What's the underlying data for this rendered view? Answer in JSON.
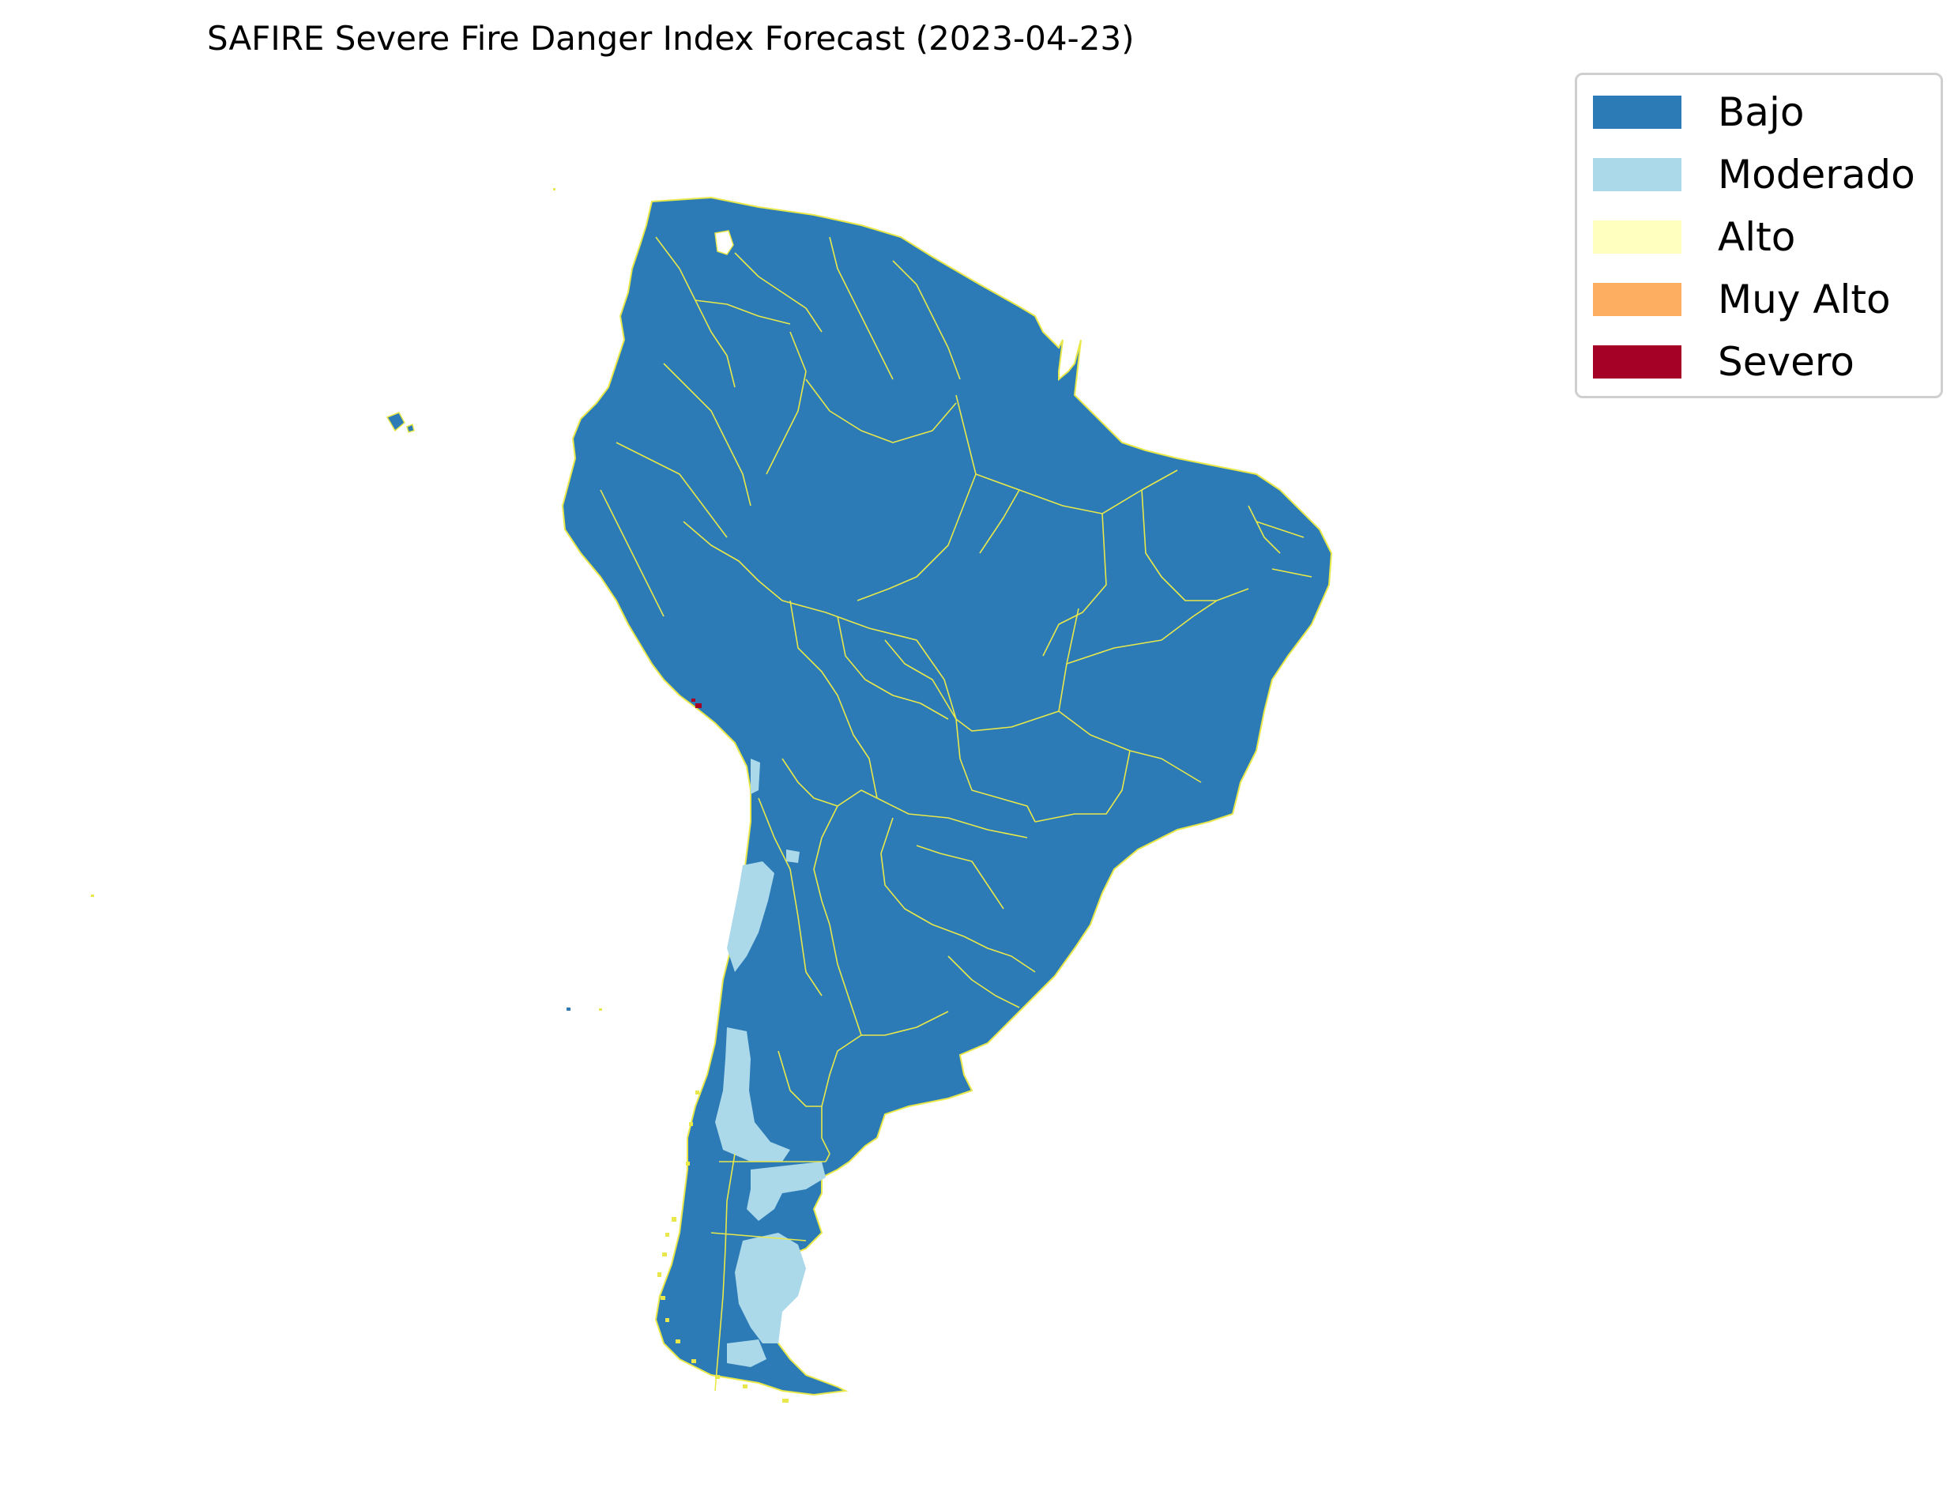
{
  "title": "SAFIRE Severe Fire Danger Index Forecast (2023-04-23)",
  "legend": {
    "items": [
      {
        "label": "Bajo",
        "color": "#2c7bb6"
      },
      {
        "label": "Moderado",
        "color": "#abd9e9"
      },
      {
        "label": "Alto",
        "color": "#ffffbf"
      },
      {
        "label": "Muy Alto",
        "color": "#fdae61"
      },
      {
        "label": "Severo",
        "color": "#a50026"
      }
    ]
  },
  "map": {
    "region": "South America",
    "land_color": "#2c7bb6",
    "border_color": "#e8e84a",
    "moderate_color": "#abd9e9",
    "severe_color": "#a50026"
  }
}
